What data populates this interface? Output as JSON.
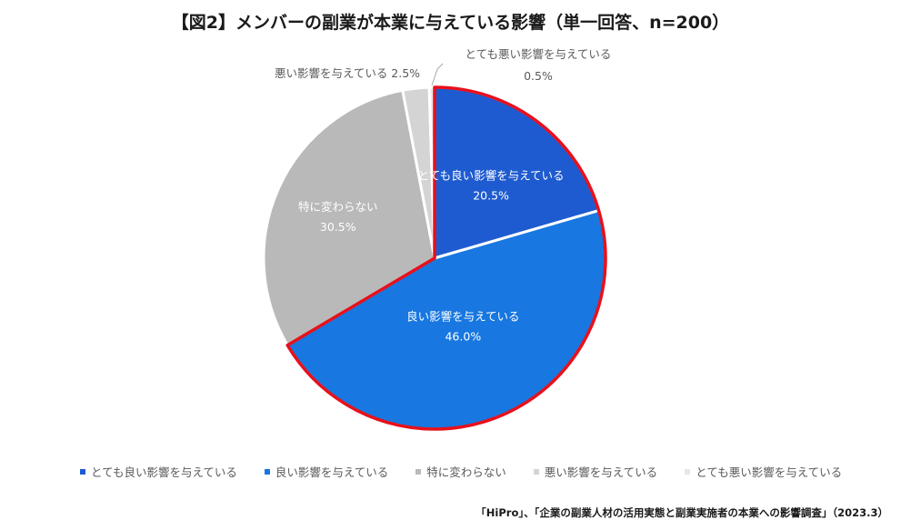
{
  "chart_data": {
    "type": "pie",
    "title": "【図2】メンバーの副業が本業に与えている影響（単一回答、n=200）",
    "slices": [
      {
        "label": "とても良い影響を与えている",
        "value": 20.5,
        "value_label": "20.5%",
        "color": "#1f5bd0",
        "label_color": "#ffffff"
      },
      {
        "label": "良い影響を与えている",
        "value": 46.0,
        "value_label": "46.0%",
        "color": "#1877e0",
        "label_color": "#ffffff"
      },
      {
        "label": "特に変わらない",
        "value": 30.5,
        "value_label": "30.5%",
        "color": "#b9b9b9",
        "label_color": "#ffffff"
      },
      {
        "label": "悪い影響を与えている",
        "value": 2.5,
        "value_label": "2.5%",
        "color": "#d4d4d4",
        "label_color": "#595959"
      },
      {
        "label": "とても悪い影響を与えている",
        "value": 0.5,
        "value_label": "0.5%",
        "color": "#e6e6e6",
        "label_color": "#595959"
      }
    ],
    "highlight_color": "#e8101b",
    "legend_position": "bottom"
  },
  "source": "「HiPro」、「企業の副業人材の活用実態と副業実施者の本業への影響調査」（2023.3）"
}
